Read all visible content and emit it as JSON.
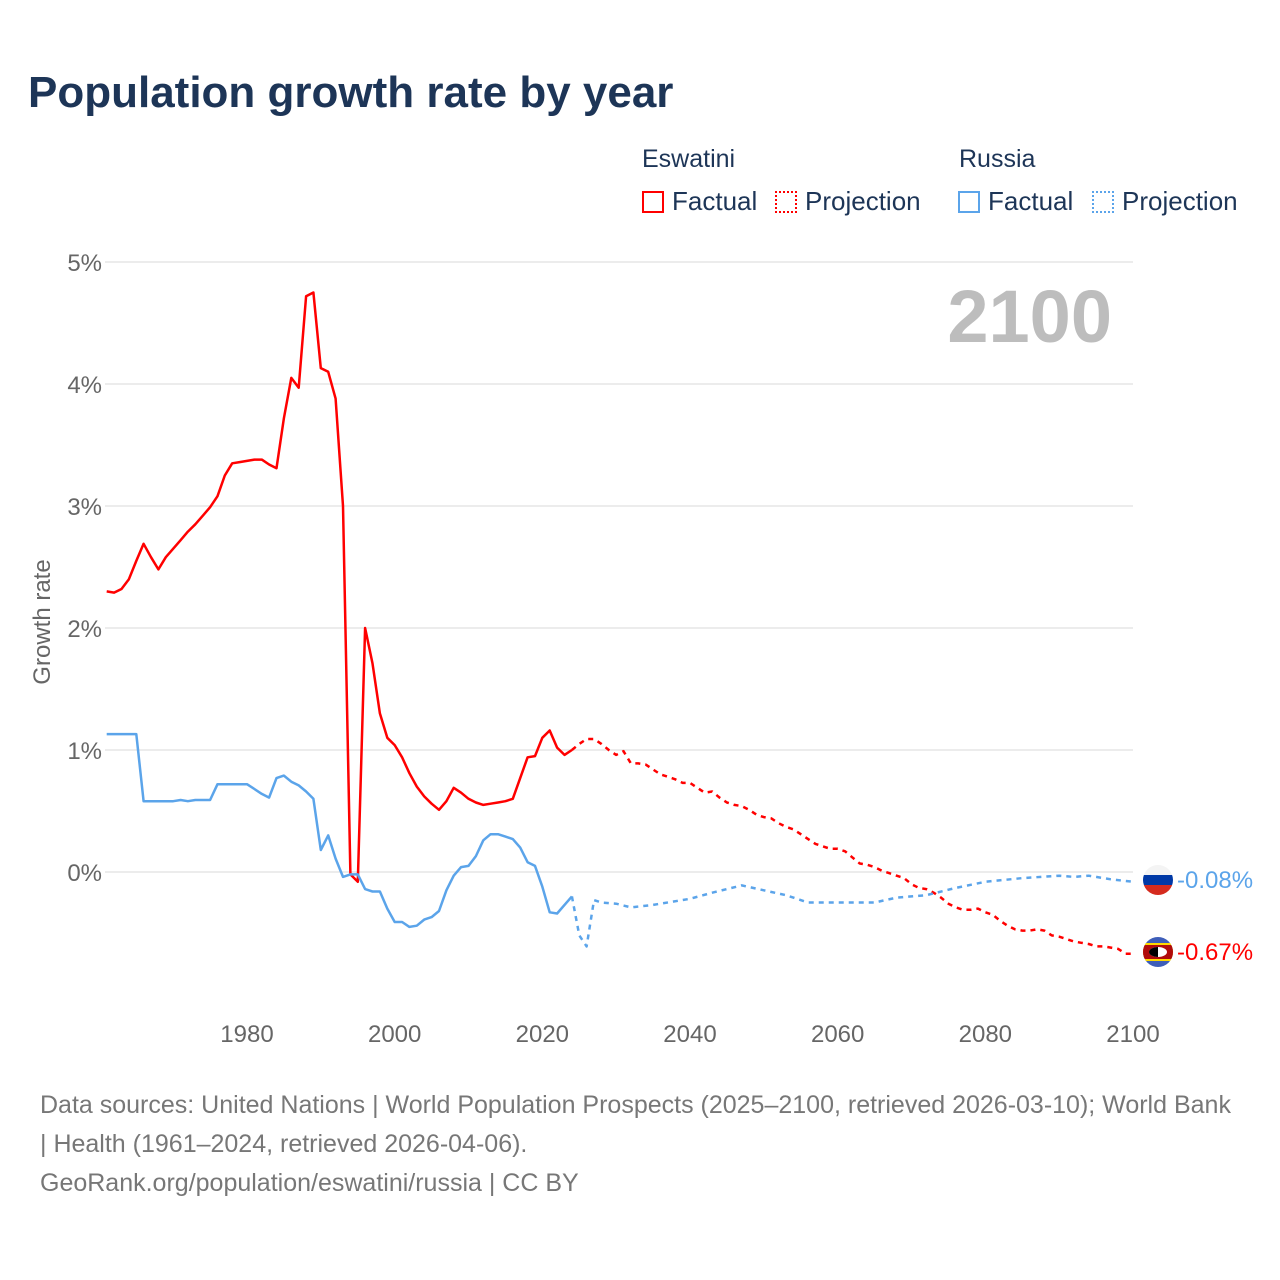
{
  "title": "Population growth rate by year",
  "legend": {
    "groups": [
      {
        "name": "Eswatini",
        "color": "#ff0000",
        "factual": "Factual",
        "projection": "Projection"
      },
      {
        "name": "Russia",
        "color": "#5ba4ea",
        "factual": "Factual",
        "projection": "Projection"
      }
    ]
  },
  "year_overlay": "2100",
  "footer": {
    "sources": "Data sources: United Nations | World Population Prospects (2025–2100, retrieved 2026-03-10); World Bank | Health (1961–2024, retrieved 2026-04-06).",
    "link": "GeoRank.org/population/eswatini/russia | CC BY"
  },
  "chart_data": {
    "type": "line",
    "title": "Population growth rate by year",
    "xlabel": "",
    "ylabel": "Growth rate",
    "xlim": [
      1961,
      2100
    ],
    "ylim": [
      -0.8,
      5
    ],
    "xticks": [
      "1980",
      "2000",
      "2020",
      "2040",
      "2060",
      "2080",
      "2100"
    ],
    "yticks": [
      "0%",
      "1%",
      "2%",
      "3%",
      "4%",
      "5%"
    ],
    "grid": true,
    "end_labels": {
      "russia": "-0.08%",
      "eswatini": "-0.67%"
    },
    "series": [
      {
        "name": "Eswatini Factual",
        "color": "#ff0000",
        "dashed": false,
        "x": [
          1961,
          1962,
          1963,
          1964,
          1965,
          1966,
          1967,
          1968,
          1969,
          1970,
          1971,
          1972,
          1973,
          1974,
          1975,
          1976,
          1977,
          1978,
          1979,
          1980,
          1981,
          1982,
          1983,
          1984,
          1985,
          1986,
          1987,
          1988,
          1989,
          1990,
          1991,
          1992,
          1993,
          1994,
          1995,
          1996,
          1997,
          1998,
          1999,
          2000,
          2001,
          2002,
          2003,
          2004,
          2005,
          2006,
          2007,
          2008,
          2009,
          2010,
          2011,
          2012,
          2013,
          2014,
          2015,
          2016,
          2017,
          2018,
          2019,
          2020,
          2021,
          2022,
          2023,
          2024
        ],
        "y": [
          2.3,
          2.29,
          2.32,
          2.4,
          2.55,
          2.69,
          2.58,
          2.48,
          2.58,
          2.65,
          2.72,
          2.79,
          2.85,
          2.92,
          2.99,
          3.08,
          3.25,
          3.35,
          3.36,
          3.37,
          3.38,
          3.38,
          3.34,
          3.31,
          3.72,
          4.05,
          3.97,
          4.72,
          4.75,
          4.13,
          4.1,
          3.88,
          3.0,
          -0.02,
          -0.08,
          2.0,
          1.71,
          1.3,
          1.1,
          1.04,
          0.94,
          0.81,
          0.7,
          0.62,
          0.56,
          0.51,
          0.58,
          0.69,
          0.65,
          0.6,
          0.57,
          0.55,
          0.56,
          0.57,
          0.58,
          0.6,
          0.77,
          0.94,
          0.95,
          1.1,
          1.16,
          1.02,
          0.96,
          1.0
        ]
      },
      {
        "name": "Eswatini Projection",
        "color": "#ff0000",
        "dashed": true,
        "x": [
          2024,
          2025,
          2026,
          2027,
          2028,
          2029,
          2030,
          2031,
          2032,
          2033,
          2034,
          2035,
          2036,
          2037,
          2038,
          2039,
          2040,
          2041,
          2042,
          2043,
          2044,
          2045,
          2046,
          2047,
          2048,
          2049,
          2050,
          2051,
          2052,
          2053,
          2054,
          2055,
          2056,
          2057,
          2058,
          2059,
          2060,
          2061,
          2062,
          2063,
          2064,
          2065,
          2066,
          2067,
          2068,
          2069,
          2070,
          2071,
          2072,
          2073,
          2074,
          2075,
          2076,
          2077,
          2078,
          2079,
          2080,
          2081,
          2082,
          2083,
          2084,
          2085,
          2086,
          2087,
          2088,
          2089,
          2090,
          2091,
          2092,
          2093,
          2094,
          2095,
          2096,
          2097,
          2098,
          2099,
          2100
        ],
        "y": [
          1.0,
          1.05,
          1.09,
          1.09,
          1.05,
          1.0,
          0.96,
          0.99,
          0.89,
          0.89,
          0.88,
          0.84,
          0.8,
          0.78,
          0.76,
          0.73,
          0.73,
          0.69,
          0.65,
          0.66,
          0.61,
          0.57,
          0.55,
          0.54,
          0.51,
          0.47,
          0.45,
          0.44,
          0.4,
          0.37,
          0.35,
          0.31,
          0.27,
          0.23,
          0.21,
          0.19,
          0.19,
          0.17,
          0.12,
          0.07,
          0.06,
          0.04,
          0.01,
          -0.01,
          -0.03,
          -0.05,
          -0.1,
          -0.13,
          -0.14,
          -0.17,
          -0.21,
          -0.26,
          -0.29,
          -0.31,
          -0.31,
          -0.3,
          -0.33,
          -0.35,
          -0.4,
          -0.44,
          -0.47,
          -0.48,
          -0.48,
          -0.47,
          -0.48,
          -0.52,
          -0.53,
          -0.55,
          -0.57,
          -0.58,
          -0.59,
          -0.61,
          -0.61,
          -0.62,
          -0.63,
          -0.67,
          -0.67
        ]
      },
      {
        "name": "Russia Factual",
        "color": "#5ba4ea",
        "dashed": false,
        "x": [
          1961,
          1962,
          1963,
          1964,
          1965,
          1966,
          1967,
          1968,
          1969,
          1970,
          1971,
          1972,
          1973,
          1974,
          1975,
          1976,
          1977,
          1978,
          1979,
          1980,
          1981,
          1982,
          1983,
          1984,
          1985,
          1986,
          1987,
          1988,
          1989,
          1990,
          1991,
          1992,
          1993,
          1994,
          1995,
          1996,
          1997,
          1998,
          1999,
          2000,
          2001,
          2002,
          2003,
          2004,
          2005,
          2006,
          2007,
          2008,
          2009,
          2010,
          2011,
          2012,
          2013,
          2014,
          2015,
          2016,
          2017,
          2018,
          2019,
          2020,
          2021,
          2022,
          2023,
          2024
        ],
        "y": [
          1.13,
          1.13,
          1.13,
          1.13,
          1.13,
          0.58,
          0.58,
          0.58,
          0.58,
          0.58,
          0.59,
          0.58,
          0.59,
          0.59,
          0.59,
          0.72,
          0.72,
          0.72,
          0.72,
          0.72,
          0.68,
          0.64,
          0.61,
          0.77,
          0.79,
          0.74,
          0.71,
          0.66,
          0.6,
          0.18,
          0.3,
          0.11,
          -0.04,
          -0.02,
          -0.02,
          -0.14,
          -0.16,
          -0.16,
          -0.3,
          -0.41,
          -0.41,
          -0.45,
          -0.44,
          -0.39,
          -0.37,
          -0.32,
          -0.15,
          -0.03,
          0.04,
          0.05,
          0.13,
          0.26,
          0.31,
          0.31,
          0.29,
          0.27,
          0.2,
          0.08,
          0.05,
          -0.12,
          -0.33,
          -0.34,
          -0.27,
          -0.2
        ]
      },
      {
        "name": "Russia Projection",
        "color": "#5ba4ea",
        "dashed": true,
        "x": [
          2024,
          2025,
          2026,
          2027,
          2028,
          2030,
          2032,
          2035,
          2040,
          2043,
          2045,
          2047,
          2050,
          2053,
          2056,
          2060,
          2065,
          2068,
          2072,
          2076,
          2080,
          2085,
          2090,
          2092,
          2094,
          2097,
          2100
        ],
        "y": [
          -0.2,
          -0.52,
          -0.61,
          -0.23,
          -0.25,
          -0.26,
          -0.29,
          -0.27,
          -0.22,
          -0.17,
          -0.14,
          -0.11,
          -0.15,
          -0.19,
          -0.25,
          -0.25,
          -0.25,
          -0.21,
          -0.19,
          -0.13,
          -0.08,
          -0.05,
          -0.03,
          -0.04,
          -0.03,
          -0.06,
          -0.08
        ]
      }
    ]
  }
}
